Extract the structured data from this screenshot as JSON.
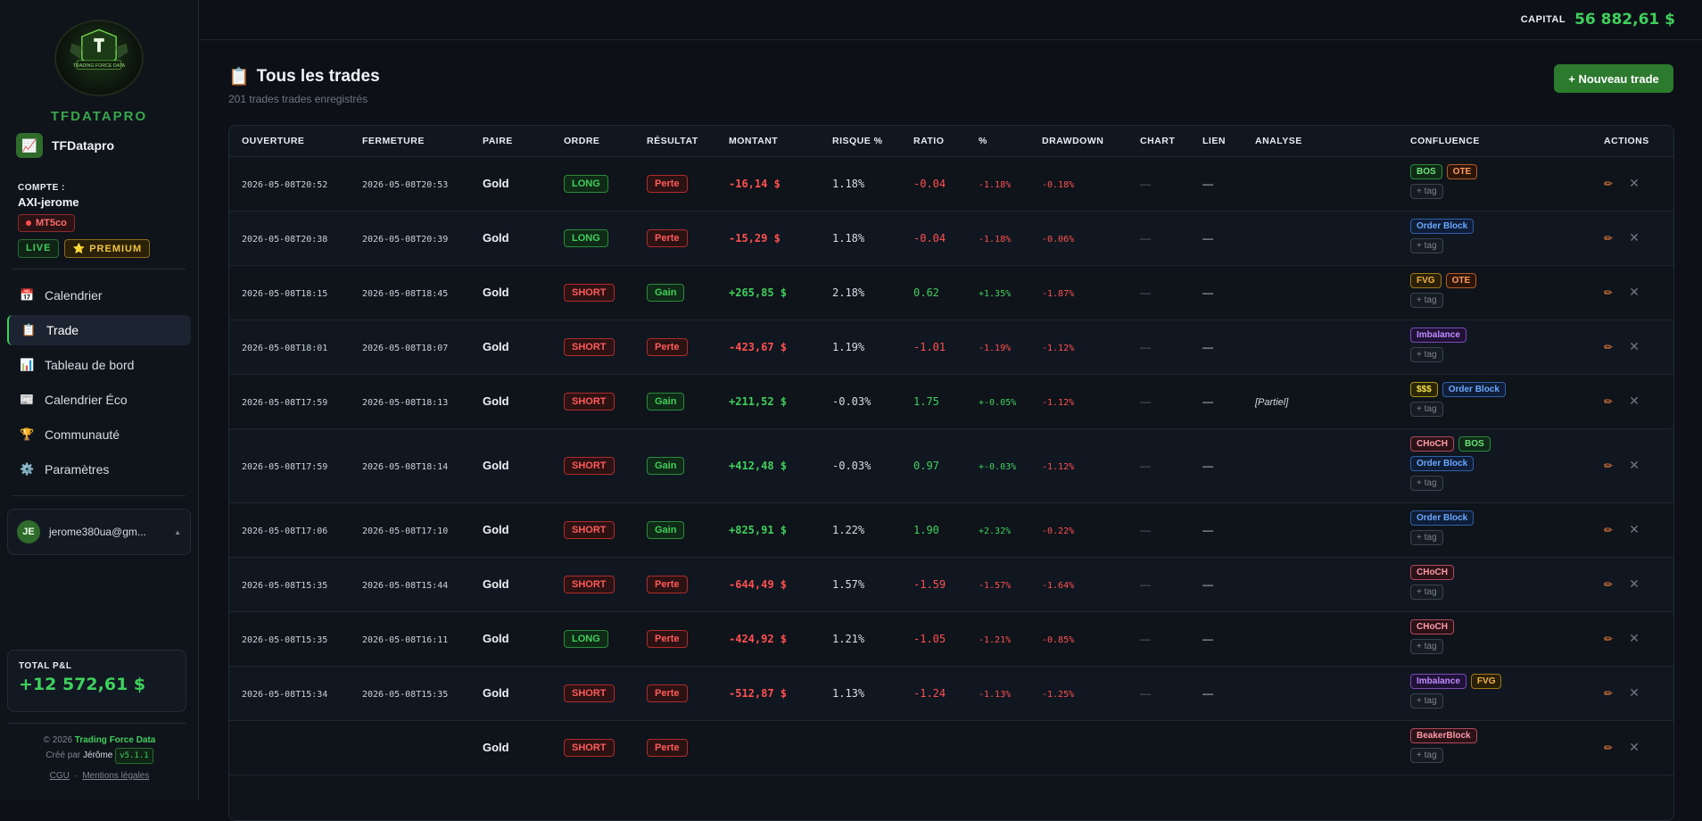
{
  "sidebar": {
    "brand": "TFDATAPRO",
    "logo_text": "TRADING FORCE DATA",
    "workspace": "TFDatapro",
    "account_label": "COMPTE :",
    "account_name": "AXI-jerome",
    "platform": "MT5co",
    "badge_live": "LIVE",
    "badge_premium": "⭐ PREMIUM",
    "nav": [
      {
        "label": "Calendrier",
        "icon": "calendar-icon",
        "glyph": "📅"
      },
      {
        "label": "Trade",
        "icon": "clipboard-icon",
        "glyph": "📋"
      },
      {
        "label": "Tableau de bord",
        "icon": "bar-chart-icon",
        "glyph": "📊"
      },
      {
        "label": "Calendrier Éco",
        "icon": "newspaper-icon",
        "glyph": "📰"
      },
      {
        "label": "Communauté",
        "icon": "trophy-icon",
        "glyph": "🏆"
      },
      {
        "label": "Paramètres",
        "icon": "gear-icon",
        "glyph": "⚙️"
      }
    ],
    "user": {
      "initials": "JE",
      "email": "jerome380ua@gm...",
      "caret": "▲"
    },
    "pnl_label": "TOTAL P&L",
    "pnl_value": "+12 572,61 $",
    "footer": {
      "copyright": "© 2026",
      "company": "Trading Force Data",
      "created_by": "Créé par",
      "author": "Jérôme",
      "version": "v5.1.1",
      "cgu": "CGU",
      "sep": "·",
      "legal": "Mentions légales"
    }
  },
  "topbar": {
    "capital_label": "CAPITAL",
    "capital_value": "56 882,61 $"
  },
  "page": {
    "icon": "📋",
    "title": "Tous les trades",
    "subtitle": "201 trades trades enregistrés",
    "new_button": "+ Nouveau trade"
  },
  "table": {
    "headers": [
      "OUVERTURE",
      "FERMETURE",
      "PAIRE",
      "ORDRE",
      "RÉSULTAT",
      "MONTANT",
      "RISQUE %",
      "RATIO",
      "%",
      "DRAWDOWN",
      "CHART",
      "LIEN",
      "ANALYSE",
      "CONFLUENCE",
      "ACTIONS"
    ],
    "add_tag_label": "+ tag",
    "rows": [
      {
        "open": "2026-05-08T20:52",
        "close": "2026-05-08T20:53",
        "pair": "Gold",
        "order": "LONG",
        "result": "Perte",
        "amount": "-16,14 $",
        "risk": "1.18%",
        "ratio": "-0.04",
        "pct": "-1.18%",
        "dd": "-0.18%",
        "chart": "—",
        "link": "—",
        "analyse": "",
        "tags": [
          [
            "BOS",
            "OTE"
          ]
        ]
      },
      {
        "open": "2026-05-08T20:38",
        "close": "2026-05-08T20:39",
        "pair": "Gold",
        "order": "LONG",
        "result": "Perte",
        "amount": "-15,29 $",
        "risk": "1.18%",
        "ratio": "-0.04",
        "pct": "-1.18%",
        "dd": "-0.06%",
        "chart": "—",
        "link": "—",
        "analyse": "",
        "tags": [
          [
            "Order Block"
          ]
        ]
      },
      {
        "open": "2026-05-08T18:15",
        "close": "2026-05-08T18:45",
        "pair": "Gold",
        "order": "SHORT",
        "result": "Gain",
        "amount": "+265,85 $",
        "risk": "2.18%",
        "ratio": "0.62",
        "pct": "+1.35%",
        "dd": "-1.87%",
        "chart": "—",
        "link": "—",
        "analyse": "",
        "tags": [
          [
            "FVG",
            "OTE"
          ]
        ]
      },
      {
        "open": "2026-05-08T18:01",
        "close": "2026-05-08T18:07",
        "pair": "Gold",
        "order": "SHORT",
        "result": "Perte",
        "amount": "-423,67 $",
        "risk": "1.19%",
        "ratio": "-1.01",
        "pct": "-1.19%",
        "dd": "-1.12%",
        "chart": "—",
        "link": "—",
        "analyse": "",
        "tags": [
          [
            "Imbalance"
          ]
        ]
      },
      {
        "open": "2026-05-08T17:59",
        "close": "2026-05-08T18:13",
        "pair": "Gold",
        "order": "SHORT",
        "result": "Gain",
        "amount": "+211,52 $",
        "risk": "-0.03%",
        "ratio": "1.75",
        "pct": "+-0.05%",
        "dd": "-1.12%",
        "chart": "—",
        "link": "—",
        "analyse": "[Partiel]",
        "tags": [
          [
            "$$$",
            "Order Block"
          ]
        ]
      },
      {
        "open": "2026-05-08T17:59",
        "close": "2026-05-08T18:14",
        "pair": "Gold",
        "order": "SHORT",
        "result": "Gain",
        "amount": "+412,48 $",
        "risk": "-0.03%",
        "ratio": "0.97",
        "pct": "+-0.03%",
        "dd": "-1.12%",
        "chart": "—",
        "link": "—",
        "analyse": "",
        "tags": [
          [
            "CHoCH",
            "BOS"
          ],
          [
            "Order Block"
          ]
        ]
      },
      {
        "open": "2026-05-08T17:06",
        "close": "2026-05-08T17:10",
        "pair": "Gold",
        "order": "SHORT",
        "result": "Gain",
        "amount": "+825,91 $",
        "risk": "1.22%",
        "ratio": "1.90",
        "pct": "+2.32%",
        "dd": "-0.22%",
        "chart": "—",
        "link": "—",
        "analyse": "",
        "tags": [
          [
            "Order Block"
          ]
        ]
      },
      {
        "open": "2026-05-08T15:35",
        "close": "2026-05-08T15:44",
        "pair": "Gold",
        "order": "SHORT",
        "result": "Perte",
        "amount": "-644,49 $",
        "risk": "1.57%",
        "ratio": "-1.59",
        "pct": "-1.57%",
        "dd": "-1.64%",
        "chart": "—",
        "link": "—",
        "analyse": "",
        "tags": [
          [
            "CHoCH"
          ]
        ]
      },
      {
        "open": "2026-05-08T15:35",
        "close": "2026-05-08T16:11",
        "pair": "Gold",
        "order": "LONG",
        "result": "Perte",
        "amount": "-424,92 $",
        "risk": "1.21%",
        "ratio": "-1.05",
        "pct": "-1.21%",
        "dd": "-0.85%",
        "chart": "—",
        "link": "—",
        "analyse": "",
        "tags": [
          [
            "CHoCH"
          ]
        ]
      },
      {
        "open": "2026-05-08T15:34",
        "close": "2026-05-08T15:35",
        "pair": "Gold",
        "order": "SHORT",
        "result": "Perte",
        "amount": "-512,87 $",
        "risk": "1.13%",
        "ratio": "-1.24",
        "pct": "-1.13%",
        "dd": "-1.25%",
        "chart": "—",
        "link": "—",
        "analyse": "",
        "tags": [
          [
            "Imbalance",
            "FVG"
          ]
        ]
      },
      {
        "open": "",
        "close": "",
        "pair": "Gold",
        "order": "SHORT",
        "result": "Perte",
        "amount": "",
        "risk": "",
        "ratio": "",
        "pct": "",
        "dd": "",
        "chart": "",
        "link": "",
        "analyse": "",
        "tags": [
          [
            "BeakerBlock"
          ]
        ]
      }
    ]
  }
}
